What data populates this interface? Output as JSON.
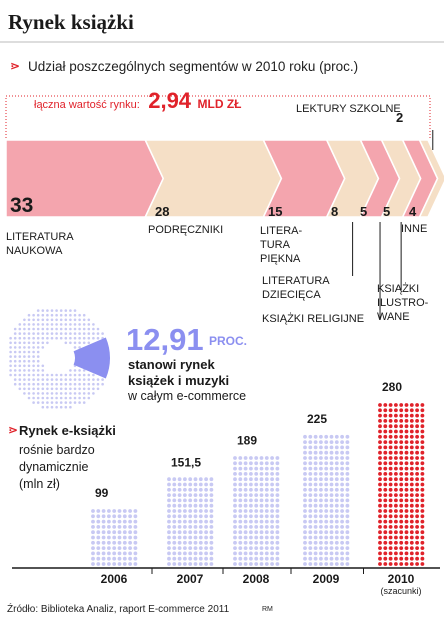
{
  "title": "Rynek książki",
  "subtitle": "Udział poszczególnych segmentów w 2010 roku (proc.)",
  "total": {
    "label": "łączna wartość rynku:",
    "value": "2,94",
    "unit": "MLD ZŁ"
  },
  "colors": {
    "accent": "#e0222a",
    "pink": "#f4a5ae",
    "beige": "#f5dfc6",
    "purple": "#8b8ff0",
    "dots": "#c8c9f3",
    "red_dots": "#e0222a"
  },
  "segments": [
    {
      "value": 33,
      "label": "LITERATURA\nNAUKOWA"
    },
    {
      "value": 28,
      "label": "PODRĘCZNIKI"
    },
    {
      "value": 15,
      "label": "LITERA-\nTURA\nPIĘKNA"
    },
    {
      "value": 8,
      "label": "LITERATURA\nDZIECIĘCA"
    },
    {
      "value": 5,
      "label": "KSIĄŻKI RELIGIJNE"
    },
    {
      "value": 5,
      "label": "KSIĄŻKI\nILUSTRO-\nWANE"
    },
    {
      "value": 4,
      "label": "INNE"
    },
    {
      "value": 2,
      "label": "LEKTURY SZKOLNE"
    }
  ],
  "ecommerce": {
    "value": "12,91",
    "unit": "PROC.",
    "text1": "stanowi rynek\nksiążek i muzyki",
    "text2": "w całym e-commerce",
    "share": 12.91
  },
  "ebooks": {
    "title": "Rynek e-książki",
    "subtitle": "rośnie bardzo\ndynamicznie\n(mln zł)",
    "chart_data": {
      "type": "bar",
      "categories": [
        "2006",
        "2007",
        "2008",
        "2009",
        "2010"
      ],
      "category_notes": [
        "",
        "",
        "",
        "",
        "(szacunki)"
      ],
      "values": [
        99,
        151.5,
        189,
        225,
        280
      ],
      "value_labels": [
        "99",
        "151,5",
        "189",
        "225",
        "280"
      ],
      "title": "Rynek e-książki",
      "ylabel": "mln zł",
      "ylim": [
        0,
        280
      ],
      "highlight_index": 4
    }
  },
  "source": "Źródło: Biblioteka Analiz, raport E-commerce 2011",
  "credit": "RM"
}
